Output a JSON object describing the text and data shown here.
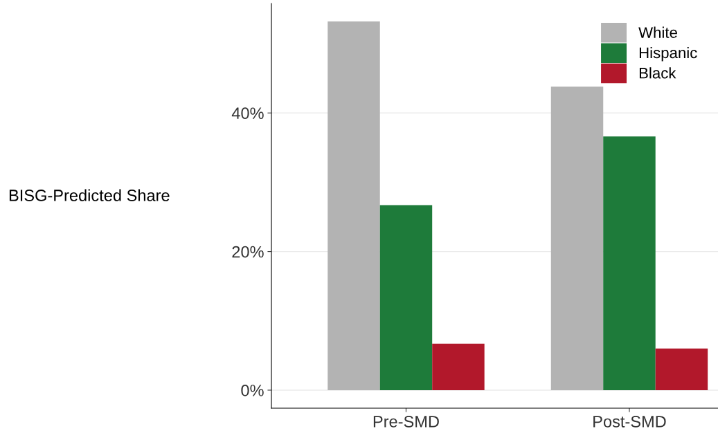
{
  "chart_data": {
    "type": "bar",
    "ylabel": "BISG-Predicted Share",
    "categories": [
      "Pre-SMD",
      "Post-SMD"
    ],
    "series": [
      {
        "name": "White",
        "color": "#b3b3b3",
        "values": [
          53.2,
          43.8
        ]
      },
      {
        "name": "Hispanic",
        "color": "#1e7b3a",
        "values": [
          26.7,
          36.6
        ]
      },
      {
        "name": "Black",
        "color": "#b2182b",
        "values": [
          6.7,
          6.0
        ]
      }
    ],
    "ylim": [
      -2.6,
      55.8
    ],
    "yticks": [
      {
        "value": 0,
        "label": "0%"
      },
      {
        "value": 20,
        "label": "20%"
      },
      {
        "value": 40,
        "label": "40%"
      }
    ],
    "grid": "y",
    "legend": "top right"
  }
}
